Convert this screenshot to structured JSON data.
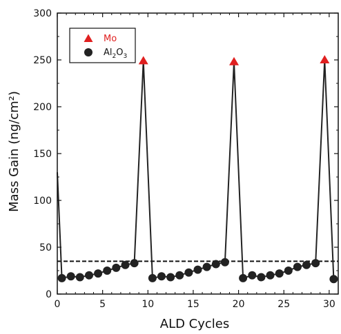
{
  "chart_data": {
    "type": "line",
    "xlabel": "ALD Cycles",
    "ylabel": "Mass Gain (ng/cm²)",
    "xlim": [
      0,
      31
    ],
    "ylim": [
      0,
      300
    ],
    "x_ticks": [
      0,
      5,
      10,
      15,
      20,
      25,
      30
    ],
    "y_ticks": [
      0,
      50,
      100,
      150,
      200,
      250,
      300
    ],
    "grid": false,
    "legend_position": "top-left",
    "reference_line": {
      "y": 35,
      "style": "dashed"
    },
    "series": [
      {
        "name": "Mo",
        "marker": "triangle",
        "color": "#e02020",
        "x": [
          9.5,
          19.5,
          29.5
        ],
        "values": [
          249,
          248,
          250
        ]
      },
      {
        "name": "Al2O3",
        "legend_base": "Al",
        "legend_sub1": "2",
        "legend_mid": "O",
        "legend_sub2": "3",
        "marker": "circle",
        "color": "#222222",
        "x": [
          0.5,
          1.5,
          2.5,
          3.5,
          4.5,
          5.5,
          6.5,
          7.5,
          8.5,
          10.5,
          11.5,
          12.5,
          13.5,
          14.5,
          15.5,
          16.5,
          17.5,
          18.5,
          20.5,
          21.5,
          22.5,
          23.5,
          24.5,
          25.5,
          26.5,
          27.5,
          28.5,
          30.5
        ],
        "values": [
          17,
          19,
          18,
          20,
          22,
          25,
          28,
          31,
          33,
          17,
          19,
          18,
          20,
          23,
          26,
          29,
          32,
          34,
          17,
          20,
          18,
          20,
          22,
          25,
          29,
          31,
          33,
          16
        ]
      }
    ],
    "line": {
      "color": "#222222",
      "x": [
        0,
        0.5,
        1.5,
        2.5,
        3.5,
        4.5,
        5.5,
        6.5,
        7.5,
        8.5,
        9.5,
        10.5,
        11.5,
        12.5,
        13.5,
        14.5,
        15.5,
        16.5,
        17.5,
        18.5,
        19.5,
        20.5,
        21.5,
        22.5,
        23.5,
        24.5,
        25.5,
        26.5,
        27.5,
        28.5,
        29.5,
        30.5
      ],
      "values": [
        130,
        17,
        19,
        18,
        20,
        22,
        25,
        28,
        31,
        33,
        249,
        17,
        19,
        18,
        20,
        23,
        26,
        29,
        32,
        34,
        248,
        17,
        20,
        18,
        20,
        22,
        25,
        29,
        31,
        33,
        250,
        16
      ]
    }
  }
}
